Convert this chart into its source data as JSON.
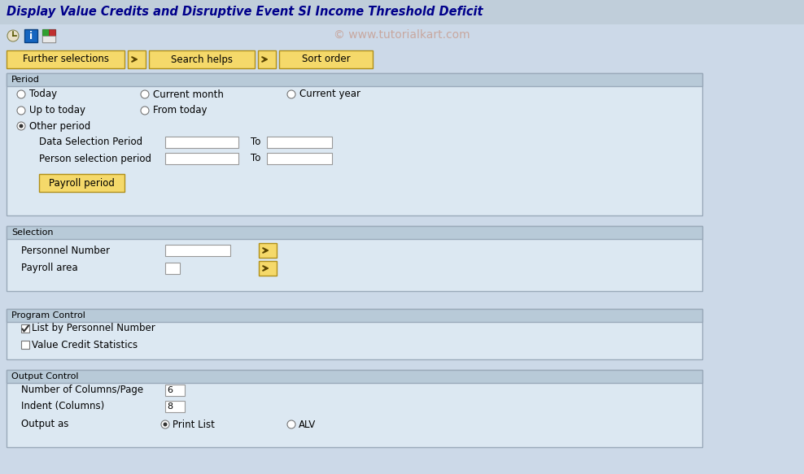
{
  "title": "Display Value Credits and Disruptive Event SI Income Threshold Deficit",
  "watermark": "© www.tutorialkart.com",
  "bg_color": "#ccd9e8",
  "header_bg": "#c0ceda",
  "toolbar_bg": "#ccd9e8",
  "panel_header_bg": "#b8cad8",
  "panel_bg": "#dce8f2",
  "panel_border": "#9aaaba",
  "white": "#ffffff",
  "button_bg": "#f5d96a",
  "button_border": "#b0901a",
  "text_color": "#000000",
  "title_color": "#00008B",
  "watermark_color": "#c8a8a0",
  "buttons_top": [
    "Further selections",
    "Search helps",
    "Sort order"
  ],
  "period_radios_row1": [
    "Today",
    "Current month",
    "Current year"
  ],
  "period_radios_row2": [
    "Up to today",
    "From today"
  ],
  "period_other": "Other period",
  "data_selection_label": "Data Selection Period",
  "person_selection_label": "Person selection period",
  "payroll_period_btn": "Payroll period",
  "selection_section": "Selection",
  "personnel_number_label": "Personnel Number",
  "payroll_area_label": "Payroll area",
  "program_control_section": "Program Control",
  "list_by_personnel": "List by Personnel Number",
  "list_by_personnel_checked": true,
  "value_credit_stats": "Value Credit Statistics",
  "value_credit_checked": false,
  "output_control_section": "Output Control",
  "num_columns_label": "Number of Columns/Page",
  "num_columns_val": "6",
  "indent_label": "Indent (Columns)",
  "indent_val": "8",
  "output_as_label": "Output as",
  "output_as_options": [
    "Print List",
    "ALV"
  ],
  "output_as_selected": 0,
  "figwidth": 9.88,
  "figheight": 5.83,
  "dpi": 100
}
